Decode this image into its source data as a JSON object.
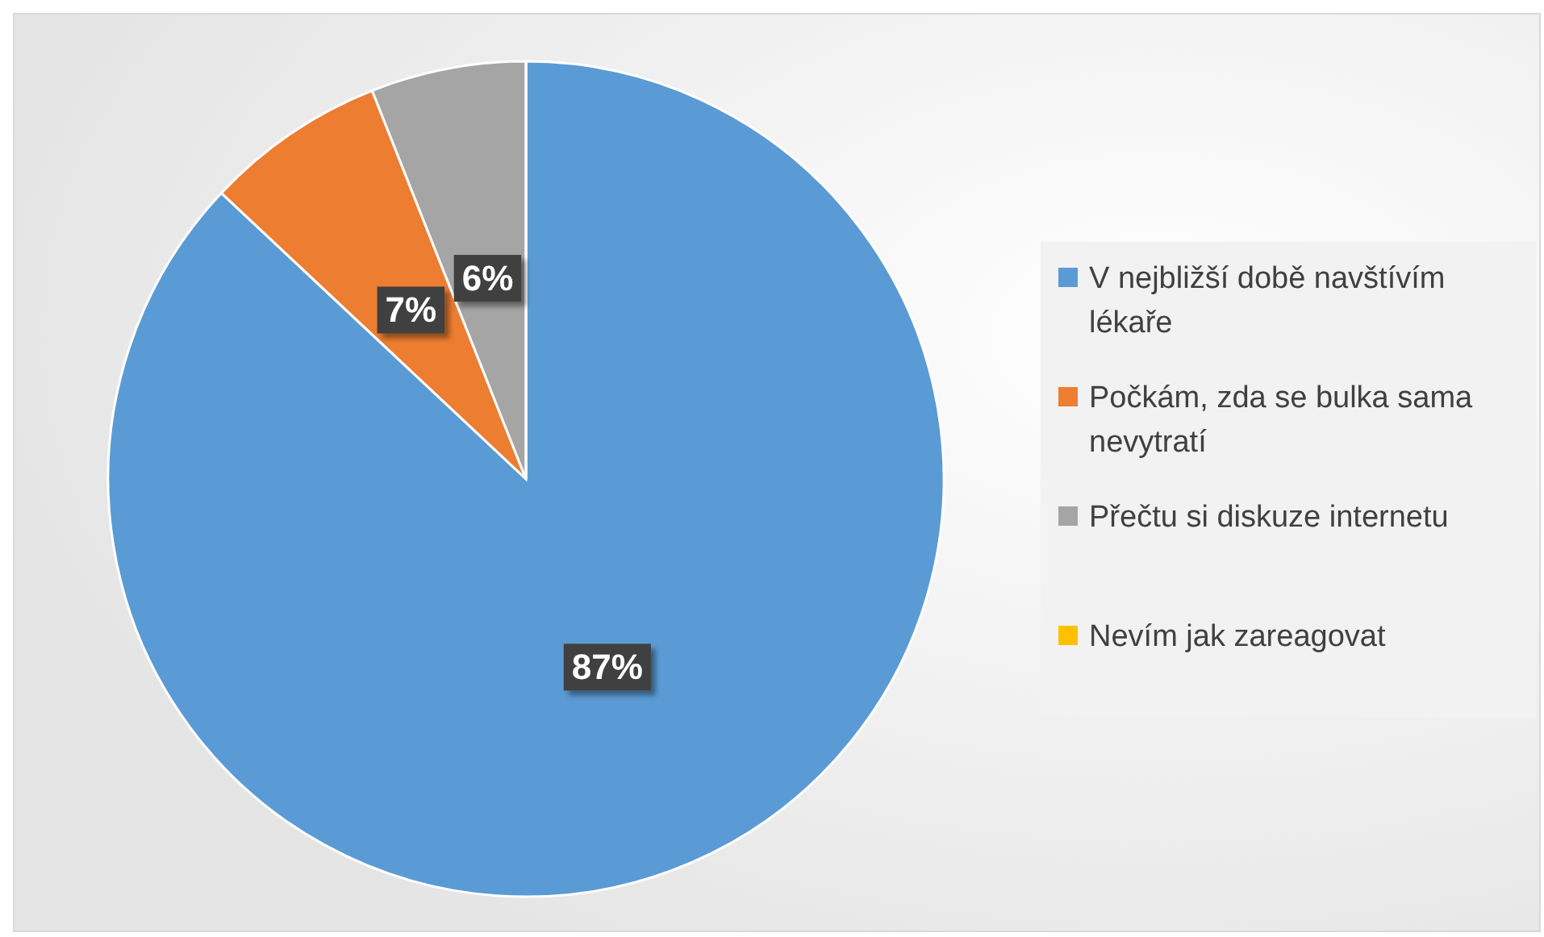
{
  "chart_data": {
    "type": "pie",
    "categories": [
      "V nejbližší době navštívím lékaře",
      "Počkám, zda se bulka sama nevytratí",
      "Přečtu si diskuze internetu",
      "Nevím jak zareagovat"
    ],
    "values": [
      87,
      7,
      6,
      0
    ],
    "colors": [
      "#5b9bd5",
      "#ed7d31",
      "#a5a5a5",
      "#ffc000"
    ],
    "value_labels": [
      "87%",
      "7%",
      "6%",
      null
    ],
    "legend": "right"
  }
}
